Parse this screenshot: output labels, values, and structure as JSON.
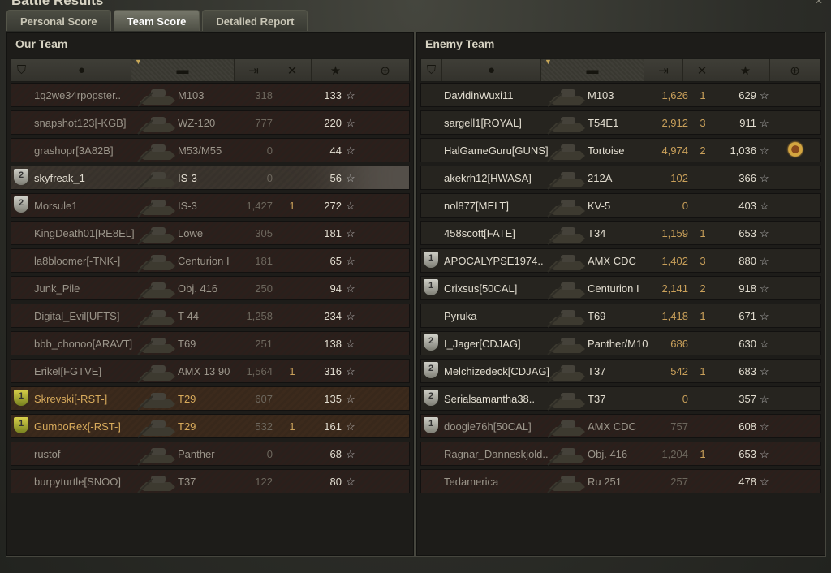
{
  "window": {
    "title": "Battle Results"
  },
  "tabs": [
    {
      "label": "Personal Score"
    },
    {
      "label": "Team Score",
      "active": true
    },
    {
      "label": "Detailed Report"
    }
  ],
  "columns_icons": [
    "platoon-icon",
    "player-icon",
    "tank-icon",
    "damage-icon",
    "kills-icon",
    "experience-star-icon",
    "medal-icon"
  ],
  "colors": {
    "squad_text": "#d8ab5c",
    "damage_alive": "#c9a05a",
    "dead_row": "#2c1f1b",
    "alive_row": "#26241f"
  },
  "our_team": {
    "title": "Our Team",
    "rows": [
      {
        "name": "1q2we34rpopster..",
        "tank": "M103",
        "damage": "318",
        "kills": "",
        "xp": "133",
        "state": "dead"
      },
      {
        "name": "snapshot123[-KGB]",
        "tank": "WZ-120",
        "damage": "777",
        "kills": "",
        "xp": "220",
        "state": "dead"
      },
      {
        "name": "grashopr[3A82B]",
        "tank": "M53/M55",
        "damage": "0",
        "kills": "",
        "xp": "44",
        "state": "dead"
      },
      {
        "name": "skyfreak_1",
        "tank": "IS-3",
        "damage": "0",
        "kills": "",
        "xp": "56",
        "state": "hover",
        "platoon": "2"
      },
      {
        "name": "Morsule1",
        "tank": "IS-3",
        "damage": "1,427",
        "kills": "1",
        "xp": "272",
        "state": "dead",
        "platoon": "2"
      },
      {
        "name": "KingDeath01[RE8EL]",
        "tank": "Löwe",
        "damage": "305",
        "kills": "",
        "xp": "181",
        "state": "dead"
      },
      {
        "name": "la8bloomer[-TNK-]",
        "tank": "Centurion I",
        "damage": "181",
        "kills": "",
        "xp": "65",
        "state": "dead"
      },
      {
        "name": "Junk_Pile",
        "tank": "Obj. 416",
        "damage": "250",
        "kills": "",
        "xp": "94",
        "state": "dead"
      },
      {
        "name": "Digital_Evil[UFTS]",
        "tank": "T-44",
        "damage": "1,258",
        "kills": "",
        "xp": "234",
        "state": "dead"
      },
      {
        "name": "bbb_chonoo[ARAVT]",
        "tank": "T69",
        "damage": "251",
        "kills": "",
        "xp": "138",
        "state": "dead"
      },
      {
        "name": "Erikel[FGTVE]",
        "tank": "AMX 13 90",
        "damage": "1,564",
        "kills": "1",
        "xp": "316",
        "state": "dead"
      },
      {
        "name": "Skrevski[-RST-]",
        "tank": "T29",
        "damage": "607",
        "kills": "",
        "xp": "135",
        "state": "squad",
        "platoon": "1"
      },
      {
        "name": "GumboRex[-RST-]",
        "tank": "T29",
        "damage": "532",
        "kills": "1",
        "xp": "161",
        "state": "dead squad",
        "platoon": "1"
      },
      {
        "name": "rustof",
        "tank": "Panther",
        "damage": "0",
        "kills": "",
        "xp": "68",
        "state": "dead"
      },
      {
        "name": "burpyturtle[SNOO]",
        "tank": "T37",
        "damage": "122",
        "kills": "",
        "xp": "80",
        "state": "dead"
      }
    ]
  },
  "enemy_team": {
    "title": "Enemy Team",
    "rows": [
      {
        "name": "DavidinWuxi11",
        "tank": "M103",
        "damage": "1,626",
        "kills": "1",
        "xp": "629",
        "state": "alive"
      },
      {
        "name": "sargell1[ROYAL]",
        "tank": "T54E1",
        "damage": "2,912",
        "kills": "3",
        "xp": "911",
        "state": "alive"
      },
      {
        "name": "HalGameGuru[GUNS]",
        "tank": "Tortoise",
        "damage": "4,974",
        "kills": "2",
        "xp": "1,036",
        "state": "alive",
        "medal": true
      },
      {
        "name": "akekrh12[HWASA]",
        "tank": "212A",
        "damage": "102",
        "kills": "",
        "xp": "366",
        "state": "alive"
      },
      {
        "name": "nol877[MELT]",
        "tank": "KV-5",
        "damage": "0",
        "kills": "",
        "xp": "403",
        "state": "alive"
      },
      {
        "name": "458scott[FATE]",
        "tank": "T34",
        "damage": "1,159",
        "kills": "1",
        "xp": "653",
        "state": "alive"
      },
      {
        "name": "APOCALYPSE1974..",
        "tank": "AMX CDC",
        "damage": "1,402",
        "kills": "3",
        "xp": "880",
        "state": "alive",
        "platoon": "1"
      },
      {
        "name": "Crixsus[50CAL]",
        "tank": "Centurion I",
        "damage": "2,141",
        "kills": "2",
        "xp": "918",
        "state": "alive",
        "platoon": "1"
      },
      {
        "name": "Pyruka",
        "tank": "T69",
        "damage": "1,418",
        "kills": "1",
        "xp": "671",
        "state": "alive"
      },
      {
        "name": "I_Jager[CDJAG]",
        "tank": "Panther/M10",
        "damage": "686",
        "kills": "",
        "xp": "630",
        "state": "alive",
        "platoon": "2"
      },
      {
        "name": "Melchizedeck[CDJAG]",
        "tank": "T37",
        "damage": "542",
        "kills": "1",
        "xp": "683",
        "state": "alive",
        "platoon": "2"
      },
      {
        "name": "Serialsamantha38..",
        "tank": "T37",
        "damage": "0",
        "kills": "",
        "xp": "357",
        "state": "alive",
        "platoon": "2"
      },
      {
        "name": "doogie76h[50CAL]",
        "tank": "AMX CDC",
        "damage": "757",
        "kills": "",
        "xp": "608",
        "state": "dead",
        "platoon": "1"
      },
      {
        "name": "Ragnar_Danneskjold..",
        "tank": "Obj. 416",
        "damage": "1,204",
        "kills": "1",
        "xp": "653",
        "state": "dead"
      },
      {
        "name": "Tedamerica",
        "tank": "Ru 251",
        "damage": "257",
        "kills": "",
        "xp": "478",
        "state": "dead"
      }
    ]
  }
}
